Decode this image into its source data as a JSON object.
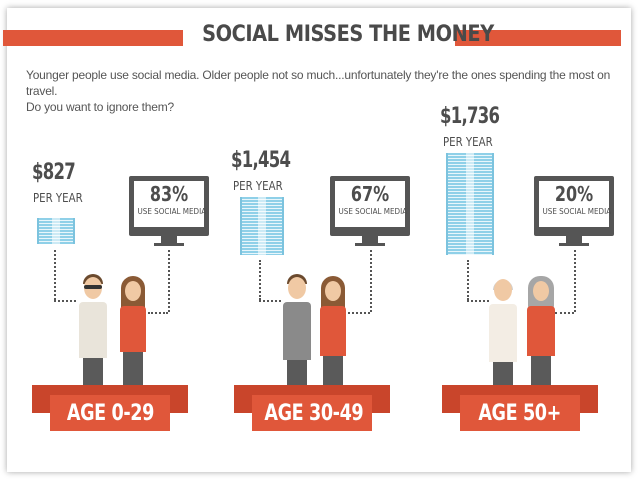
{
  "title": "SOCIAL MISSES THE MONEY",
  "intro_line1": "Younger people use social media. Older people not so much...unfortunately they're the ones spending the most on travel.",
  "intro_line2": "Do you want to ignore them?",
  "colors": {
    "accent": "#e0573a",
    "money": "#8fd0e8",
    "text": "#4d4d4d"
  },
  "groups": [
    {
      "amount": "$827",
      "per": "PER YEAR",
      "percent": "83%",
      "usage": "USE SOCIAL MEDIA",
      "age": "AGE 0-29"
    },
    {
      "amount": "$1,454",
      "per": "PER YEAR",
      "percent": "67%",
      "usage": "USE SOCIAL MEDIA",
      "age": "AGE 30-49"
    },
    {
      "amount": "$1,736",
      "per": "PER YEAR",
      "percent": "20%",
      "usage": "USE SOCIAL MEDIA",
      "age": "AGE 50+"
    }
  ]
}
